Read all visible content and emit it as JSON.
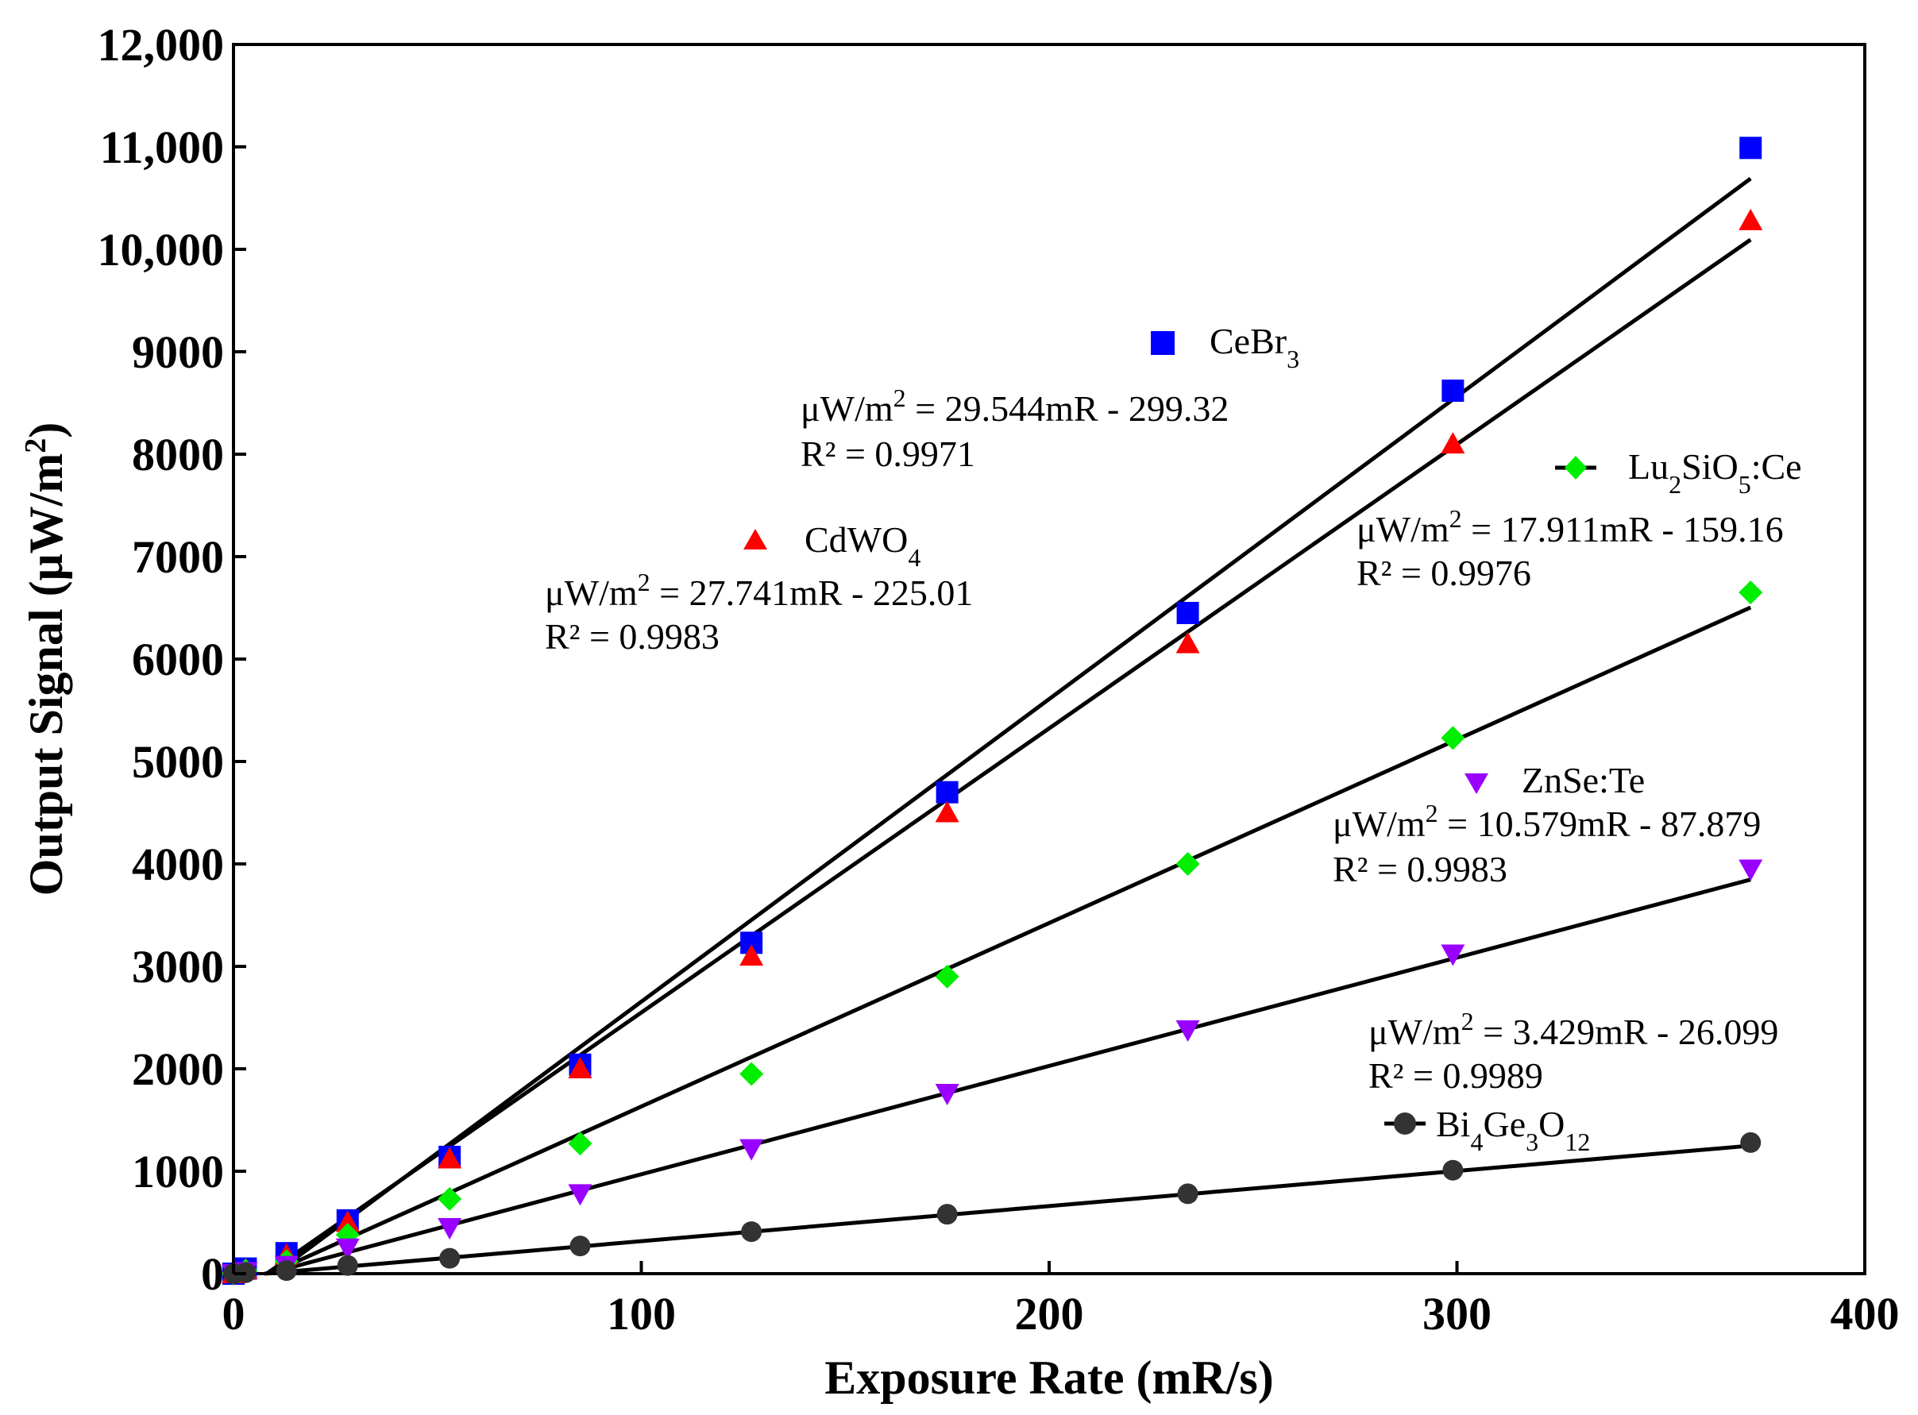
{
  "chart_data": {
    "type": "scatter",
    "title": "",
    "xlabel": "Exposure Rate (mR/s)",
    "ylabel_parts": {
      "main": "Output Signal (μW/m",
      "sup": "2",
      "end": ")"
    },
    "xlim": [
      0,
      400
    ],
    "ylim": [
      0,
      12000
    ],
    "x_ticks": [
      0,
      100,
      200,
      300,
      400
    ],
    "x_tick_labels": [
      "0",
      "100",
      "200",
      "300",
      "400"
    ],
    "y_ticks": [
      0,
      1000,
      2000,
      3000,
      4000,
      5000,
      6000,
      7000,
      8000,
      9000,
      10000,
      11000,
      12000
    ],
    "y_tick_labels": [
      "0",
      "1000",
      "2000",
      "3000",
      "4000",
      "5000",
      "6000",
      "7000",
      "8000",
      "9000",
      "10,000",
      "11,000",
      "12,000"
    ],
    "grid": false,
    "series": [
      {
        "name": "CeBr3",
        "label": {
          "base": "CeBr",
          "sub": "3",
          "rest": ""
        },
        "color": "#0000ff",
        "marker": "square",
        "x": [
          0,
          3,
          13,
          28,
          53,
          85,
          127,
          175,
          234,
          299,
          372
        ],
        "y": [
          0,
          50,
          200,
          520,
          1140,
          2040,
          3230,
          4700,
          6450,
          8620,
          10990
        ],
        "fit": {
          "slope": 29.544,
          "intercept": -299.32,
          "x_range": [
            0,
            372
          ]
        },
        "equation": {
          "pre": "μW/m",
          "sup": "2",
          "post": " = 29.544mR - 299.32"
        },
        "r2": "R² = 0.9971"
      },
      {
        "name": "CdWO4",
        "label": {
          "base": "CdWO",
          "sub": "4",
          "rest": ""
        },
        "color": "#ff0000",
        "marker": "triangle-up",
        "x": [
          0,
          3,
          13,
          28,
          53,
          85,
          127,
          175,
          234,
          299,
          372
        ],
        "y": [
          0,
          40,
          180,
          500,
          1120,
          2000,
          3100,
          4500,
          6150,
          8100,
          10280
        ],
        "fit": {
          "slope": 27.741,
          "intercept": -225.01,
          "x_range": [
            0,
            372
          ]
        },
        "equation": {
          "pre": "μW/m",
          "sup": "2",
          "post": " = 27.741mR - 225.01"
        },
        "r2": "R² = 0.9983"
      },
      {
        "name": "Lu2SiO5:Ce",
        "label": {
          "base": "Lu",
          "sub": "2",
          "rest": "SiO",
          "sub2": "5",
          "rest2": ":Ce"
        },
        "color": "#00ee00",
        "marker": "diamond",
        "x": [
          0,
          3,
          13,
          28,
          53,
          85,
          127,
          175,
          234,
          299,
          372
        ],
        "y": [
          0,
          30,
          120,
          380,
          730,
          1270,
          1950,
          2900,
          4000,
          5230,
          6650
        ],
        "fit": {
          "slope": 17.911,
          "intercept": -159.16,
          "x_range": [
            0,
            372
          ]
        },
        "equation": {
          "pre": "μW/m",
          "sup": "2",
          "post": " = 17.911mR - 159.16"
        },
        "r2": "R² = 0.9976"
      },
      {
        "name": "ZnSe:Te",
        "label": {
          "base": "ZnSe:Te",
          "sub": "",
          "rest": ""
        },
        "color": "#9a00ff",
        "marker": "triangle-down",
        "x": [
          0,
          3,
          13,
          28,
          53,
          85,
          127,
          175,
          234,
          299,
          372
        ],
        "y": [
          0,
          20,
          80,
          250,
          450,
          780,
          1220,
          1760,
          2380,
          3120,
          3950
        ],
        "fit": {
          "slope": 10.579,
          "intercept": -87.879,
          "x_range": [
            0,
            372
          ]
        },
        "equation": {
          "pre": "μW/m",
          "sup": "2",
          "post": " = 10.579mR - 87.879"
        },
        "r2": "R² = 0.9983"
      },
      {
        "name": "Bi4Ge3O12",
        "label": {
          "base": "Bi",
          "sub": "4",
          "rest": "Ge",
          "sub2": "3",
          "rest2": "O",
          "sub3": "12"
        },
        "color": "#333333",
        "marker": "circle",
        "x": [
          0,
          3,
          13,
          28,
          53,
          85,
          127,
          175,
          234,
          299,
          372
        ],
        "y": [
          0,
          10,
          30,
          80,
          150,
          270,
          410,
          580,
          780,
          1010,
          1280
        ],
        "fit": {
          "slope": 3.429,
          "intercept": -26.099,
          "x_range": [
            0,
            372
          ]
        },
        "equation": {
          "pre": "μW/m",
          "sup": "2",
          "post": " = 3.429mR - 26.099"
        },
        "r2": "R² = 0.9989"
      }
    ]
  }
}
